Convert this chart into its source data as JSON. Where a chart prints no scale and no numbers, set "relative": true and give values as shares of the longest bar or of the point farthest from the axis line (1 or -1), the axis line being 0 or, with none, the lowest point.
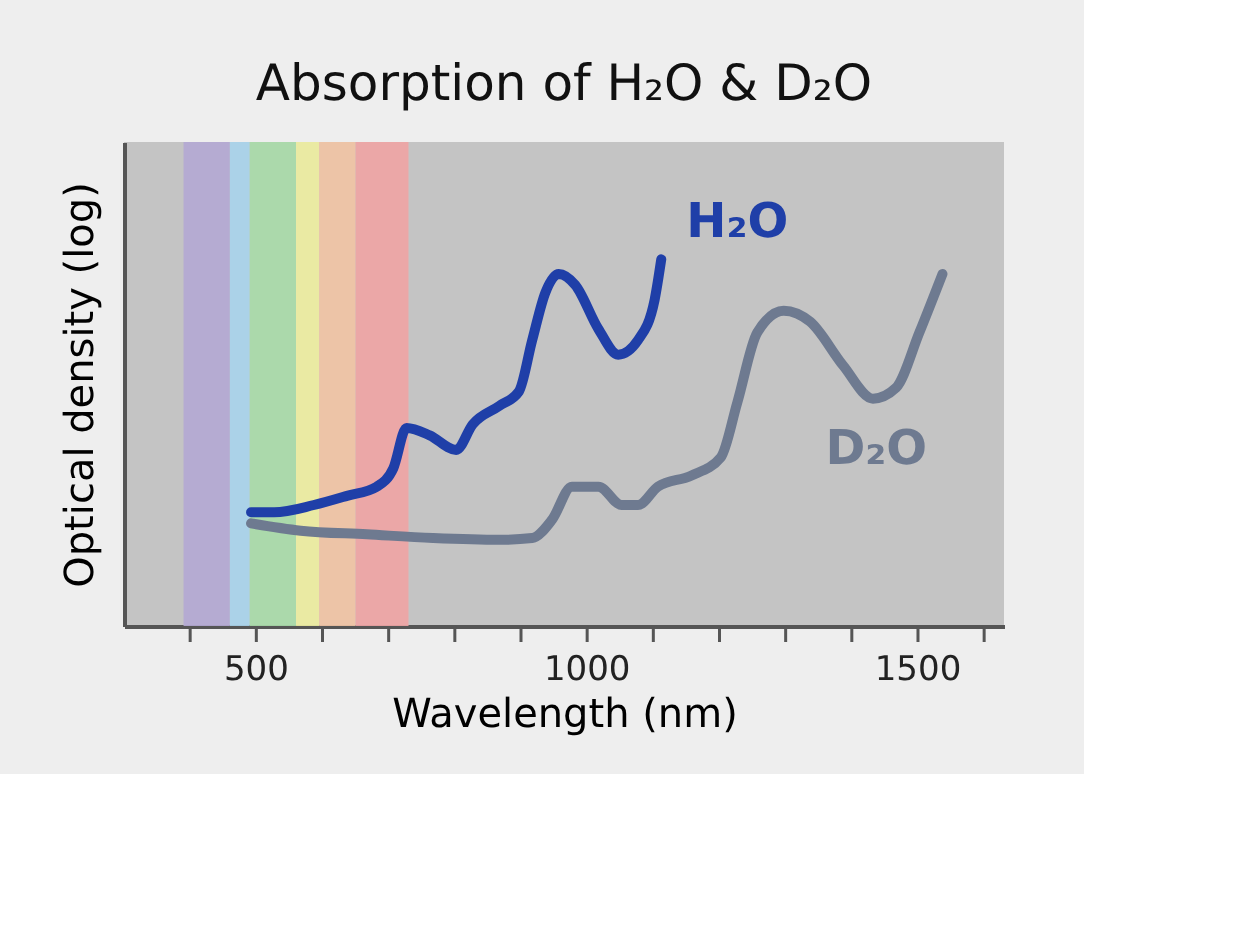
{
  "chart_data": {
    "type": "line",
    "title": "Absorption of H₂O & D₂O",
    "xlabel": "Wavelength (nm)",
    "ylabel": "Optical density (log)",
    "relative": true,
    "grid": false,
    "xlim": [
      300,
      1630
    ],
    "xticks": [
      {
        "value": 400,
        "label": null
      },
      500,
      {
        "value": 600,
        "label": null
      },
      {
        "value": 700,
        "label": null
      },
      {
        "value": 800,
        "label": null
      },
      {
        "value": 900,
        "label": null
      },
      1000,
      {
        "value": 1100,
        "label": null
      },
      {
        "value": 1200,
        "label": null
      },
      {
        "value": 1300,
        "label": null
      },
      {
        "value": 1400,
        "label": null
      },
      1500,
      {
        "value": 1600,
        "label": null
      }
    ],
    "bands": [
      {
        "axis": "x",
        "from": 390,
        "to": 460,
        "color": "#b4a8d4"
      },
      {
        "axis": "x",
        "from": 460,
        "to": 490,
        "color": "#a8d4ec"
      },
      {
        "axis": "x",
        "from": 490,
        "to": 560,
        "color": "#a8dca8"
      },
      {
        "axis": "x",
        "from": 560,
        "to": 595,
        "color": "#eeeea0"
      },
      {
        "axis": "x",
        "from": 595,
        "to": 650,
        "color": "#f2c4a4"
      },
      {
        "axis": "x",
        "from": 650,
        "to": 730,
        "color": "#f0a4a4"
      }
    ],
    "series": [
      {
        "name": "H₂O",
        "color": "#1f3fa8",
        "x": [
          492,
          527,
          587,
          637,
          682,
          707,
          727,
          762,
          802,
          827,
          867,
          897,
          917,
          937,
          957,
          982,
          1017,
          1047,
          1077,
          1102,
          1112
        ],
        "values": [
          0.31,
          0.31,
          0.33,
          0.355,
          0.38,
          0.43,
          0.54,
          0.52,
          0.48,
          0.55,
          0.6,
          0.64,
          0.78,
          0.91,
          0.96,
          0.93,
          0.81,
          0.74,
          0.78,
          0.89,
          1.0
        ]
      },
      {
        "name": "D₂O",
        "color": "#6e7a90",
        "x": [
          492,
          567,
          667,
          767,
          867,
          917,
          947,
          977,
          1017,
          1052,
          1077,
          1107,
          1157,
          1202,
          1227,
          1257,
          1297,
          1337,
          1387,
          1432,
          1467,
          1502,
          1537
        ],
        "values": [
          0.28,
          0.26,
          0.25,
          0.24,
          0.235,
          0.24,
          0.29,
          0.38,
          0.38,
          0.33,
          0.33,
          0.38,
          0.41,
          0.46,
          0.61,
          0.8,
          0.86,
          0.83,
          0.71,
          0.62,
          0.65,
          0.8,
          0.96
        ]
      }
    ]
  }
}
